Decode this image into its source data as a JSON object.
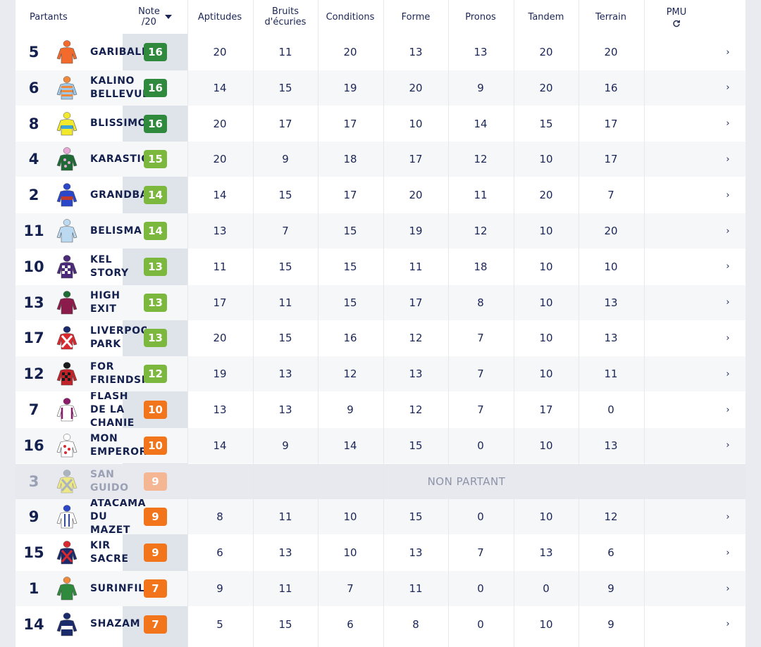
{
  "header": {
    "partants": "Partants",
    "note_line1": "Note",
    "note_line2": "/20",
    "columns": [
      {
        "line1": "Aptitudes",
        "line2": ""
      },
      {
        "line1": "Bruits",
        "line2": "d'écuries"
      },
      {
        "line1": "Conditions",
        "line2": ""
      },
      {
        "line1": "Forme",
        "line2": ""
      },
      {
        "line1": "Pronos",
        "line2": ""
      },
      {
        "line1": "Tandem",
        "line2": ""
      },
      {
        "line1": "Terrain",
        "line2": ""
      }
    ],
    "pmu": "PMU",
    "sort_icon": "caret-down-icon",
    "refresh_icon": "refresh-icon"
  },
  "non_partant_label": "NON PARTANT",
  "chevron": "›",
  "colors": {
    "dark_green": "#2f8a3d",
    "light_green": "#7cb83d",
    "orange": "#f2741b",
    "faded_orange": "#f5b693",
    "navy": "#14204d"
  },
  "rows": [
    {
      "num": "5",
      "name": [
        "GARIBALDI"
      ],
      "note": "16",
      "tier": "dark_green",
      "silk": {
        "body": "#f26a2c",
        "stripe": "#f26a2c",
        "cap": "#f26a2c",
        "pattern": "plain"
      },
      "vals": [
        "20",
        "11",
        "20",
        "13",
        "13",
        "20",
        "20"
      ]
    },
    {
      "num": "6",
      "name": [
        "KALINO",
        "BELLEVUE"
      ],
      "note": "16",
      "tier": "dark_green",
      "silk": {
        "body": "#9fc9ea",
        "stripe": "#f08a3a",
        "cap": "#f08a3a",
        "pattern": "hoops"
      },
      "vals": [
        "14",
        "15",
        "19",
        "20",
        "9",
        "20",
        "16"
      ]
    },
    {
      "num": "8",
      "name": [
        "BLISSIMO"
      ],
      "note": "16",
      "tier": "dark_green",
      "silk": {
        "body": "#f2e82c",
        "stripe": "#3aa6d8",
        "cap": "#f2e82c",
        "pattern": "band"
      },
      "vals": [
        "20",
        "17",
        "17",
        "10",
        "14",
        "15",
        "17"
      ]
    },
    {
      "num": "4",
      "name": [
        "KARASTIC"
      ],
      "note": "15",
      "tier": "light_green",
      "silk": {
        "body": "#1f6b35",
        "stripe": "#e7a8d6",
        "cap": "#e7a8d6",
        "pattern": "spots"
      },
      "vals": [
        "20",
        "9",
        "18",
        "17",
        "12",
        "10",
        "17"
      ]
    },
    {
      "num": "2",
      "name": [
        "GRANDBAY"
      ],
      "note": "14",
      "tier": "light_green",
      "silk": {
        "body": "#2a47c9",
        "stripe": "#c0392b",
        "cap": "#2a47c9",
        "pattern": "band"
      },
      "vals": [
        "14",
        "15",
        "17",
        "20",
        "11",
        "20",
        "7"
      ]
    },
    {
      "num": "11",
      "name": [
        "BELISMA"
      ],
      "note": "14",
      "tier": "light_green",
      "silk": {
        "body": "#bcd9f2",
        "stripe": "#ffffff",
        "cap": "#bcd9f2",
        "pattern": "plain"
      },
      "vals": [
        "13",
        "7",
        "15",
        "19",
        "12",
        "10",
        "20"
      ]
    },
    {
      "num": "10",
      "name": [
        "KEL",
        "STORY"
      ],
      "note": "13",
      "tier": "light_green",
      "silk": {
        "body": "#4b2a7a",
        "stripe": "#ffffff",
        "cap": "#4b2a7a",
        "pattern": "check"
      },
      "vals": [
        "11",
        "15",
        "15",
        "11",
        "18",
        "10",
        "10"
      ]
    },
    {
      "num": "13",
      "name": [
        "HIGH",
        "EXIT"
      ],
      "note": "13",
      "tier": "light_green",
      "silk": {
        "body": "#8a1b4a",
        "stripe": "#8a1b4a",
        "cap": "#1f6b35",
        "pattern": "plain"
      },
      "vals": [
        "17",
        "11",
        "15",
        "17",
        "8",
        "10",
        "13"
      ]
    },
    {
      "num": "17",
      "name": [
        "LIVERPOOL",
        "PARK"
      ],
      "note": "13",
      "tier": "light_green",
      "silk": {
        "body": "#d9282e",
        "stripe": "#ffffff",
        "cap": "#1b2a6a",
        "pattern": "cross"
      },
      "vals": [
        "20",
        "15",
        "16",
        "12",
        "7",
        "10",
        "13"
      ]
    },
    {
      "num": "12",
      "name": [
        "FOR",
        "FRIENDSHIP"
      ],
      "note": "12",
      "tier": "light_green",
      "silk": {
        "body": "#c0232a",
        "stripe": "#1a1a1a",
        "cap": "#1a1a1a",
        "pattern": "check"
      },
      "vals": [
        "19",
        "13",
        "12",
        "13",
        "7",
        "10",
        "11"
      ]
    },
    {
      "num": "7",
      "name": [
        "FLASH",
        "DE LA",
        "CHANIE"
      ],
      "note": "10",
      "tier": "orange",
      "silk": {
        "body": "#ffffff",
        "stripe": "#8a1b6a",
        "cap": "#8a1b6a",
        "pattern": "braces"
      },
      "vals": [
        "13",
        "13",
        "9",
        "12",
        "7",
        "17",
        "0"
      ]
    },
    {
      "num": "16",
      "name": [
        "MON",
        "EMPEROR"
      ],
      "note": "10",
      "tier": "orange",
      "silk": {
        "body": "#ffffff",
        "stripe": "#d9282e",
        "cap": "#ffffff",
        "pattern": "spots"
      },
      "vals": [
        "14",
        "9",
        "14",
        "15",
        "0",
        "10",
        "13"
      ]
    },
    {
      "num": "3",
      "name": [
        "SAN",
        "GUIDO"
      ],
      "note": "9",
      "tier": "faded_orange",
      "non_partant": true,
      "silk": {
        "body": "#f2e82c",
        "stripe": "#7a8a9a",
        "cap": "#7a8a9a",
        "pattern": "cross"
      },
      "vals": []
    },
    {
      "num": "9",
      "name": [
        "ATACAMA",
        "DU",
        "MAZET"
      ],
      "note": "9",
      "tier": "orange",
      "silk": {
        "body": "#ffffff",
        "stripe": "#2a47c9",
        "cap": "#2a47c9",
        "pattern": "stripes"
      },
      "vals": [
        "8",
        "11",
        "10",
        "15",
        "0",
        "10",
        "12"
      ]
    },
    {
      "num": "15",
      "name": [
        "KIR",
        "SACRE"
      ],
      "note": "9",
      "tier": "orange",
      "silk": {
        "body": "#1b2a6a",
        "stripe": "#d9282e",
        "cap": "#d9282e",
        "pattern": "cross"
      },
      "vals": [
        "6",
        "13",
        "10",
        "13",
        "7",
        "13",
        "6"
      ]
    },
    {
      "num": "1",
      "name": [
        "SURINFIL"
      ],
      "note": "7",
      "tier": "orange",
      "silk": {
        "body": "#2f8a3d",
        "stripe": "#f08a3a",
        "cap": "#f08a3a",
        "pattern": "plain"
      },
      "vals": [
        "9",
        "11",
        "7",
        "11",
        "0",
        "0",
        "9"
      ]
    },
    {
      "num": "14",
      "name": [
        "SHAZAM"
      ],
      "note": "7",
      "tier": "orange",
      "silk": {
        "body": "#1b2a6a",
        "stripe": "#ffffff",
        "cap": "#1b2a6a",
        "pattern": "band"
      },
      "vals": [
        "5",
        "15",
        "6",
        "8",
        "0",
        "10",
        "9"
      ]
    }
  ]
}
